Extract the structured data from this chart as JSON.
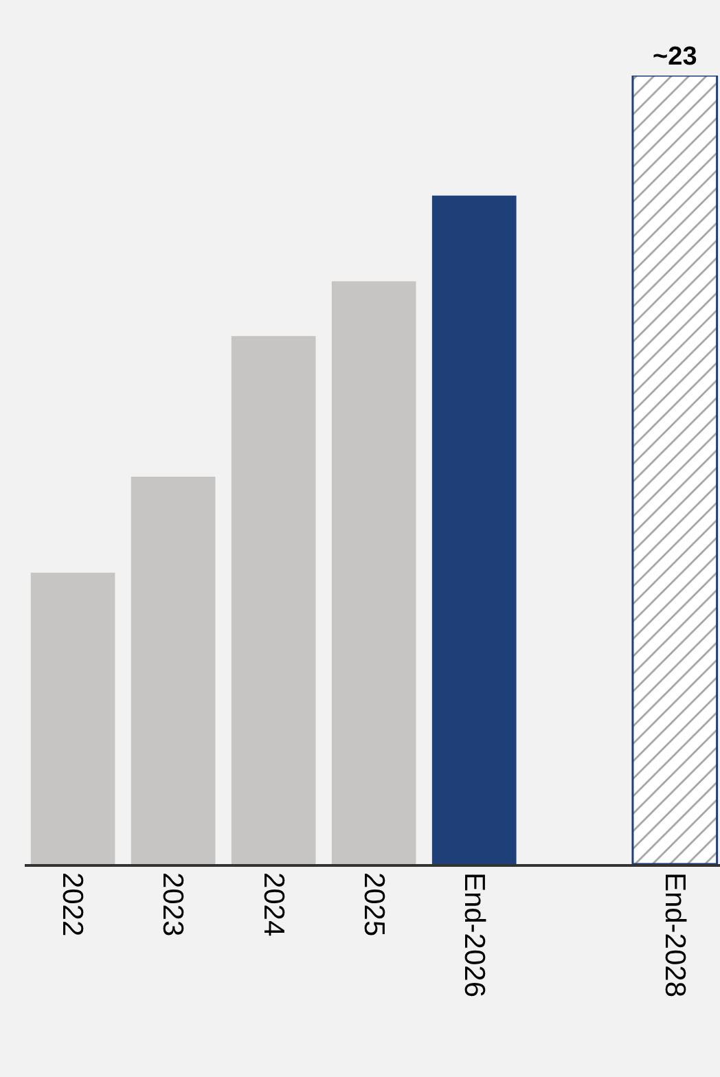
{
  "chart_data": {
    "type": "bar",
    "categories": [
      "2022",
      "2023",
      "2024",
      "2025",
      "End-2026",
      null,
      "End-2028"
    ],
    "values": [
      8.5,
      11.3,
      15.4,
      17.0,
      19.5,
      null,
      23
    ],
    "colors": [
      "#c6c5c3",
      "#c6c5c3",
      "#c6c5c3",
      "#c6c5c3",
      "#1e3f77",
      null,
      "#1e3f77"
    ],
    "value_labels": [
      null,
      null,
      null,
      null,
      null,
      null,
      "~23"
    ]
  }
}
